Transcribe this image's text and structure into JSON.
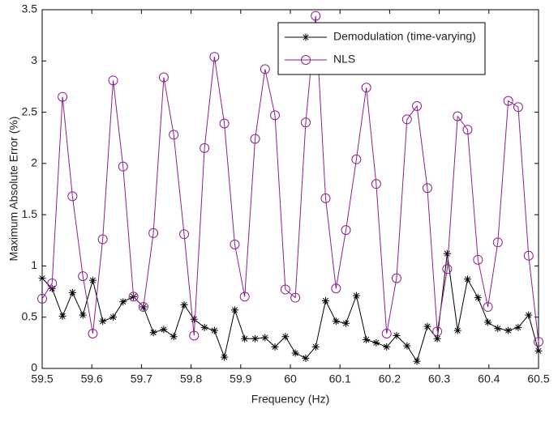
{
  "chart_data": {
    "type": "line",
    "xlabel": "Frequency (Hz)",
    "ylabel": "Maximum Absolute Error (%)",
    "x": [
      59.5,
      59.52,
      59.541,
      59.561,
      59.582,
      59.602,
      59.622,
      59.643,
      59.663,
      59.684,
      59.704,
      59.724,
      59.745,
      59.765,
      59.786,
      59.806,
      59.827,
      59.847,
      59.867,
      59.888,
      59.908,
      59.929,
      59.949,
      59.969,
      59.99,
      60.01,
      60.031,
      60.051,
      60.071,
      60.092,
      60.112,
      60.133,
      60.153,
      60.173,
      60.194,
      60.214,
      60.235,
      60.255,
      60.276,
      60.296,
      60.316,
      60.337,
      60.357,
      60.378,
      60.398,
      60.418,
      60.439,
      60.459,
      60.48,
      60.5
    ],
    "series": [
      {
        "name": "Demodulation (time-varying)",
        "color": "#000000",
        "marker": "star",
        "values": [
          0.88,
          0.78,
          0.51,
          0.74,
          0.52,
          0.86,
          0.46,
          0.5,
          0.65,
          0.7,
          0.6,
          0.35,
          0.38,
          0.31,
          0.62,
          0.48,
          0.4,
          0.37,
          0.11,
          0.57,
          0.29,
          0.29,
          0.3,
          0.21,
          0.31,
          0.15,
          0.1,
          0.21,
          0.66,
          0.46,
          0.44,
          0.71,
          0.28,
          0.25,
          0.21,
          0.32,
          0.22,
          0.07,
          0.41,
          0.29,
          1.12,
          0.37,
          0.87,
          0.69,
          0.45,
          0.39,
          0.37,
          0.4,
          0.52,
          0.17
        ]
      },
      {
        "name": "NLS",
        "color": "#8e1f8e",
        "marker": "circle",
        "values": [
          0.68,
          0.83,
          2.65,
          1.68,
          0.9,
          0.34,
          1.26,
          2.81,
          1.97,
          0.7,
          0.6,
          1.32,
          2.84,
          2.28,
          1.31,
          0.32,
          2.15,
          3.04,
          2.39,
          1.21,
          0.7,
          2.24,
          2.92,
          2.47,
          0.77,
          0.69,
          2.4,
          3.44,
          1.66,
          0.78,
          1.35,
          2.04,
          2.74,
          1.8,
          0.34,
          0.88,
          2.43,
          2.56,
          1.76,
          0.36,
          0.97,
          2.46,
          2.33,
          1.06,
          0.6,
          1.23,
          2.61,
          2.55,
          1.1,
          0.26
        ]
      }
    ],
    "xlim": [
      59.5,
      60.5
    ],
    "xticks": [
      59.5,
      59.6,
      59.7,
      59.8,
      59.9,
      60,
      60.1,
      60.2,
      60.3,
      60.4,
      60.5
    ],
    "ylim": [
      0,
      3.5
    ],
    "yticks": [
      0,
      0.5,
      1,
      1.5,
      2,
      2.5,
      3,
      3.5
    ],
    "grid": false,
    "legend": "upper right"
  }
}
